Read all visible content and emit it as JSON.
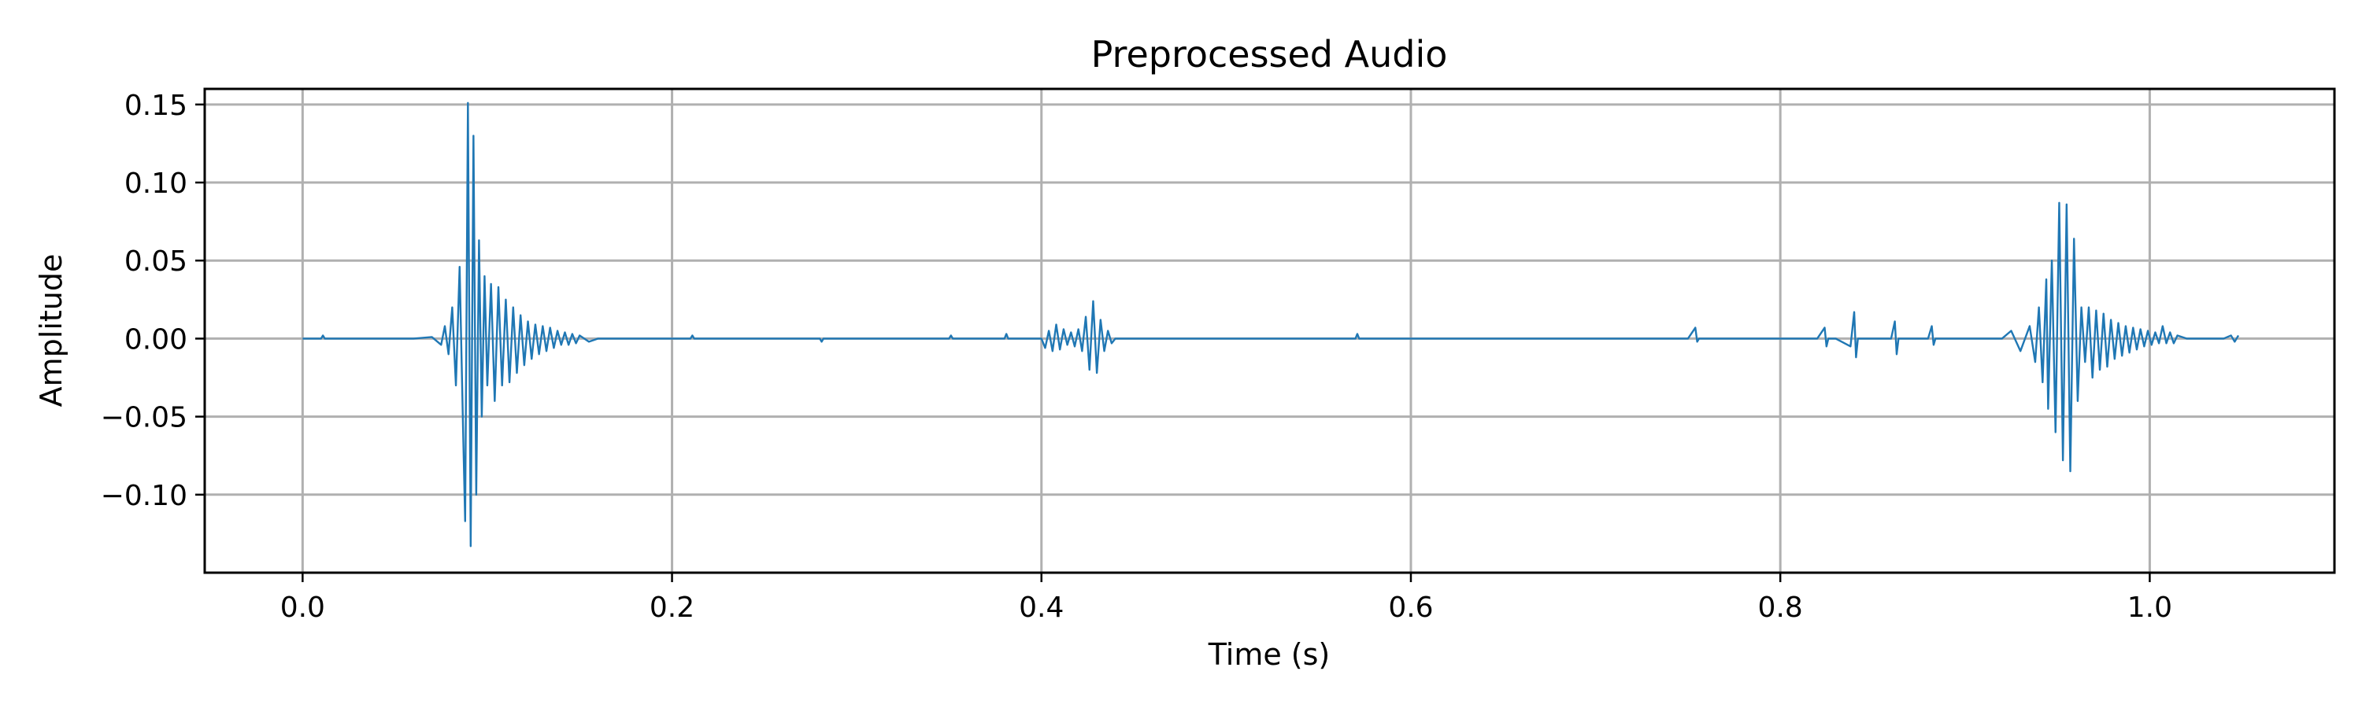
{
  "chart_data": {
    "type": "line",
    "title": "Preprocessed Audio",
    "xlabel": "Time (s)",
    "ylabel": "Amplitude",
    "xlim": [
      -0.053,
      1.1
    ],
    "ylim": [
      -0.15,
      0.16
    ],
    "x_ticks": [
      0.0,
      0.2,
      0.4,
      0.6,
      0.8,
      1.0
    ],
    "x_tick_labels": [
      "0.0",
      "0.2",
      "0.4",
      "0.6",
      "0.8",
      "1.0"
    ],
    "y_ticks": [
      -0.1,
      -0.05,
      0.0,
      0.05,
      0.1,
      0.15
    ],
    "y_tick_labels": [
      "−0.10",
      "−0.05",
      "0.00",
      "0.05",
      "0.10",
      "0.15"
    ],
    "grid": true,
    "series": [
      {
        "color": "#1f77b4",
        "x": [
          0.0,
          0.01,
          0.011,
          0.012,
          0.03,
          0.06,
          0.07,
          0.075,
          0.077,
          0.079,
          0.081,
          0.083,
          0.085,
          0.087,
          0.088,
          0.0895,
          0.091,
          0.0925,
          0.094,
          0.0955,
          0.097,
          0.0985,
          0.1,
          0.102,
          0.104,
          0.106,
          0.108,
          0.11,
          0.112,
          0.114,
          0.116,
          0.118,
          0.12,
          0.122,
          0.124,
          0.126,
          0.128,
          0.13,
          0.132,
          0.134,
          0.136,
          0.138,
          0.14,
          0.142,
          0.144,
          0.146,
          0.148,
          0.15,
          0.155,
          0.16,
          0.2,
          0.21,
          0.211,
          0.212,
          0.28,
          0.281,
          0.282,
          0.35,
          0.351,
          0.352,
          0.38,
          0.381,
          0.382,
          0.4,
          0.402,
          0.404,
          0.406,
          0.408,
          0.41,
          0.412,
          0.414,
          0.416,
          0.418,
          0.42,
          0.422,
          0.424,
          0.426,
          0.428,
          0.43,
          0.432,
          0.434,
          0.436,
          0.438,
          0.44,
          0.45,
          0.5,
          0.56,
          0.57,
          0.571,
          0.572,
          0.7,
          0.75,
          0.754,
          0.755,
          0.756,
          0.8,
          0.82,
          0.824,
          0.825,
          0.826,
          0.83,
          0.838,
          0.84,
          0.841,
          0.842,
          0.845,
          0.86,
          0.862,
          0.863,
          0.864,
          0.87,
          0.88,
          0.882,
          0.883,
          0.884,
          0.9,
          0.92,
          0.925,
          0.93,
          0.935,
          0.938,
          0.94,
          0.942,
          0.944,
          0.945,
          0.947,
          0.949,
          0.951,
          0.953,
          0.955,
          0.957,
          0.959,
          0.961,
          0.963,
          0.965,
          0.967,
          0.969,
          0.971,
          0.973,
          0.975,
          0.977,
          0.979,
          0.981,
          0.983,
          0.985,
          0.987,
          0.989,
          0.991,
          0.993,
          0.995,
          0.997,
          0.999,
          1.001,
          1.003,
          1.005,
          1.007,
          1.009,
          1.011,
          1.013,
          1.015,
          1.02,
          1.03,
          1.04,
          1.044,
          1.046,
          1.048
        ],
        "y": [
          0.0,
          0.0,
          0.002,
          0.0,
          0.0,
          0.0,
          0.001,
          -0.004,
          0.008,
          -0.01,
          0.02,
          -0.03,
          0.046,
          -0.065,
          -0.117,
          0.151,
          -0.133,
          0.13,
          -0.1,
          0.063,
          -0.05,
          0.04,
          -0.03,
          0.035,
          -0.04,
          0.033,
          -0.03,
          0.025,
          -0.028,
          0.02,
          -0.022,
          0.015,
          -0.017,
          0.011,
          -0.013,
          0.009,
          -0.01,
          0.008,
          -0.008,
          0.007,
          -0.006,
          0.005,
          -0.004,
          0.004,
          -0.004,
          0.003,
          -0.003,
          0.002,
          -0.002,
          0.0,
          0.0,
          0.0,
          0.002,
          0.0,
          0.0,
          -0.002,
          0.0,
          0.0,
          0.002,
          0.0,
          0.0,
          0.003,
          0.0,
          0.0,
          -0.006,
          0.005,
          -0.008,
          0.009,
          -0.007,
          0.006,
          -0.004,
          0.004,
          -0.005,
          0.006,
          -0.008,
          0.014,
          -0.02,
          0.024,
          -0.022,
          0.012,
          -0.008,
          0.005,
          -0.003,
          0.0,
          0.0,
          0.0,
          0.0,
          0.0,
          0.003,
          0.0,
          0.0,
          0.0,
          0.007,
          -0.002,
          0.0,
          0.0,
          0.0,
          0.007,
          -0.005,
          0.0,
          0.0,
          -0.005,
          0.017,
          -0.012,
          0.0,
          0.0,
          0.0,
          0.011,
          -0.01,
          0.0,
          0.0,
          0.0,
          0.008,
          -0.004,
          0.0,
          0.0,
          0.0,
          0.005,
          -0.008,
          0.008,
          -0.015,
          0.02,
          -0.028,
          0.038,
          -0.045,
          0.05,
          -0.06,
          0.087,
          -0.078,
          0.086,
          -0.085,
          0.064,
          -0.04,
          0.02,
          -0.015,
          0.02,
          -0.025,
          0.018,
          -0.02,
          0.016,
          -0.018,
          0.012,
          -0.013,
          0.01,
          -0.011,
          0.008,
          -0.009,
          0.007,
          -0.007,
          0.006,
          -0.005,
          0.005,
          -0.004,
          0.004,
          -0.003,
          0.008,
          -0.003,
          0.004,
          -0.003,
          0.002,
          0.0,
          0.0,
          0.0,
          0.002,
          -0.002,
          0.002
        ]
      }
    ]
  }
}
